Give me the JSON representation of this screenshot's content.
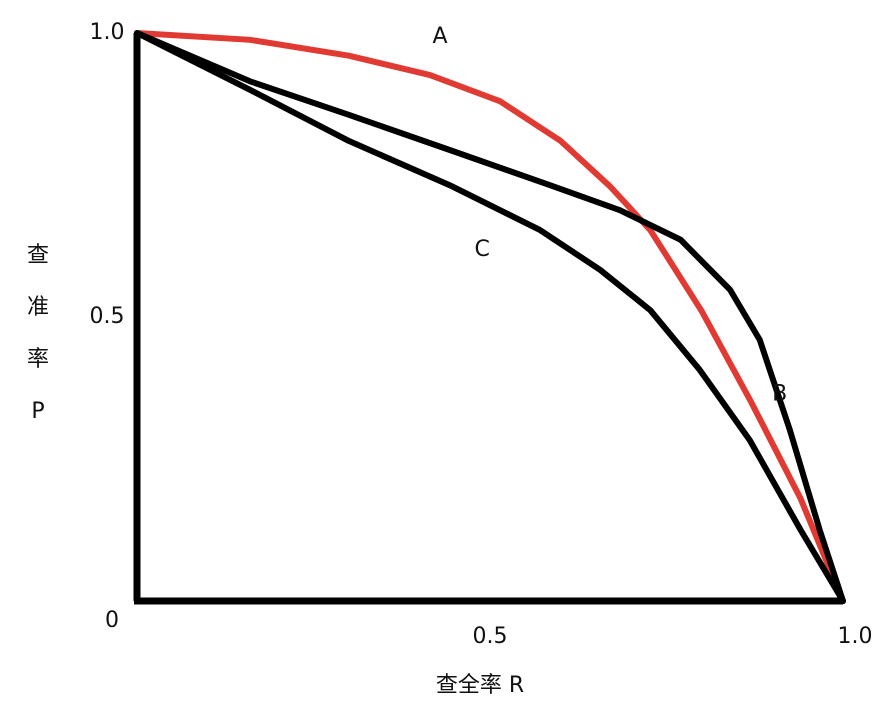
{
  "chart_data": {
    "type": "line",
    "x_label": "查全率 R",
    "y_label": [
      "查",
      "准",
      "率",
      "P"
    ],
    "xlim": [
      0,
      1
    ],
    "ylim": [
      0,
      1
    ],
    "xticks": [
      0.5,
      {
        "value": 1,
        "label": "1.0"
      }
    ],
    "yticks": [
      0,
      0.5,
      {
        "value": 1,
        "label": "1.0"
      }
    ],
    "series": [
      {
        "name": "A",
        "color": "#e03a32",
        "x": [
          0,
          0.16,
          0.3,
          0.415,
          0.514,
          0.6,
          0.67,
          0.727,
          0.8,
          0.87,
          0.94,
          1
        ],
        "values": [
          1,
          0.988,
          0.96,
          0.926,
          0.88,
          0.81,
          0.73,
          0.653,
          0.51,
          0.35,
          0.18,
          0
        ]
      },
      {
        "name": "B",
        "color": "#000000",
        "x": [
          0,
          0.16,
          0.3,
          0.443,
          0.585,
          0.684,
          0.77,
          0.84,
          0.882,
          0.925,
          0.967,
          1
        ],
        "values": [
          1,
          0.915,
          0.856,
          0.794,
          0.732,
          0.688,
          0.636,
          0.548,
          0.46,
          0.3,
          0.125,
          0
        ]
      },
      {
        "name": "C",
        "color": "#000000",
        "x": [
          0,
          0.16,
          0.3,
          0.443,
          0.571,
          0.656,
          0.727,
          0.797,
          0.868,
          0.94,
          1
        ],
        "values": [
          1,
          0.9,
          0.81,
          0.732,
          0.653,
          0.583,
          0.512,
          0.407,
          0.283,
          0.125,
          0
        ]
      }
    ]
  }
}
